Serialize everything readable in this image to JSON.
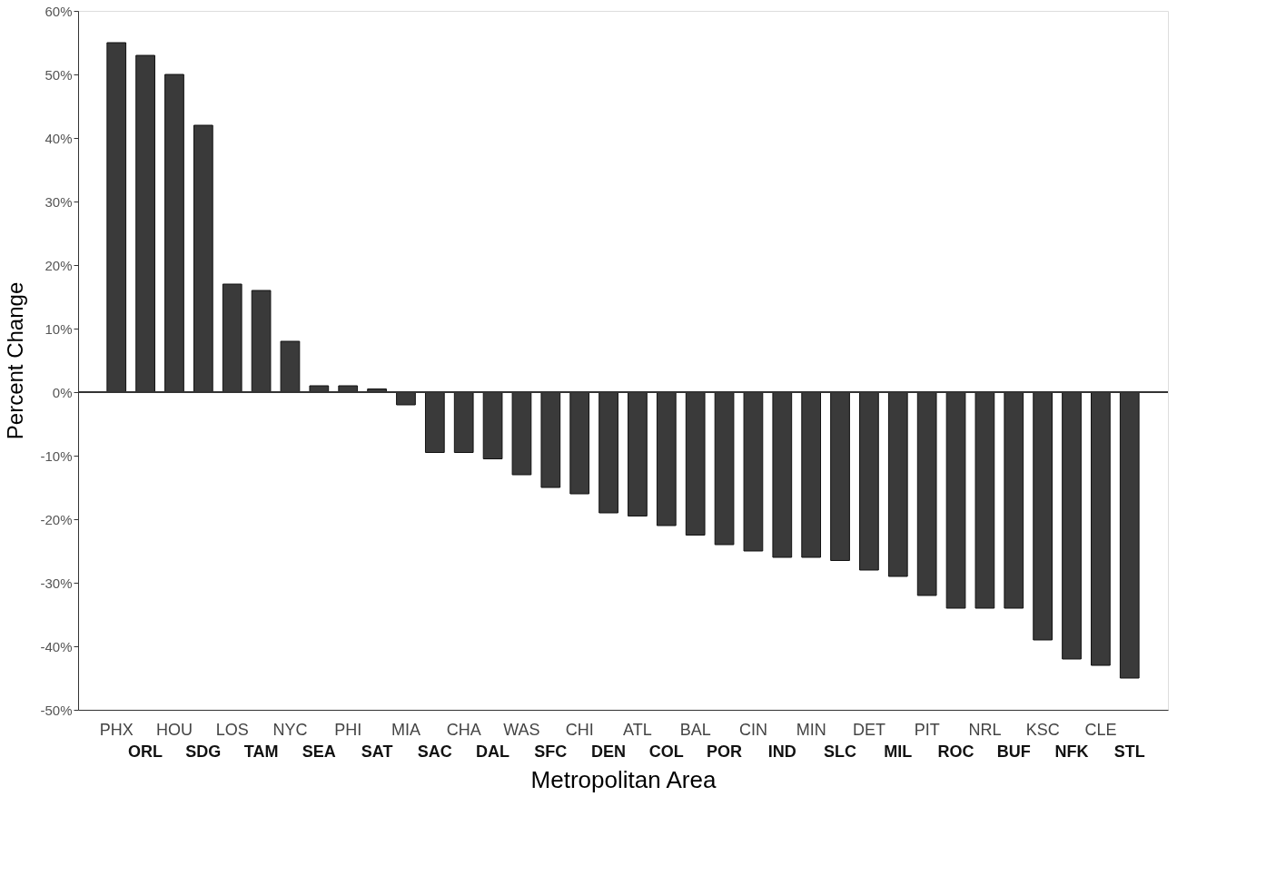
{
  "chart_data": {
    "type": "bar",
    "xlabel": "Metropolitan Area",
    "ylabel": "Percent Change",
    "categories": [
      "PHX",
      "ORL",
      "HOU",
      "SDG",
      "LOS",
      "TAM",
      "NYC",
      "SEA",
      "PHI",
      "SAT",
      "MIA",
      "SAC",
      "CHA",
      "DAL",
      "WAS",
      "SFC",
      "CHI",
      "DEN",
      "ATL",
      "COL",
      "BAL",
      "POR",
      "CIN",
      "IND",
      "MIN",
      "SLC",
      "DET",
      "MIL",
      "PIT",
      "ROC",
      "NRL",
      "BUF",
      "KSC",
      "NFK",
      "CLE",
      "STL"
    ],
    "values": [
      55,
      53,
      50,
      42,
      17,
      16,
      8,
      1,
      1,
      0.5,
      -2,
      -9.5,
      -9.5,
      -10.5,
      -13,
      -15,
      -16,
      -19,
      -19.5,
      -21,
      -22.5,
      -24,
      -25,
      -26,
      -26,
      -26.5,
      -28,
      -29,
      -32,
      -34,
      -34,
      -34,
      -39,
      -42,
      -43,
      -45
    ],
    "color": "#3a3a3a",
    "ylim": [
      -50,
      60
    ],
    "yticks": [
      {
        "value": -50,
        "label": "-50%"
      },
      {
        "value": -40,
        "label": "-40%"
      },
      {
        "value": -30,
        "label": "-30%"
      },
      {
        "value": -20,
        "label": "-20%"
      },
      {
        "value": -10,
        "label": "-10%"
      },
      {
        "value": 0,
        "label": "0%"
      },
      {
        "value": 10,
        "label": "10%"
      },
      {
        "value": 20,
        "label": "20%"
      },
      {
        "value": 30,
        "label": "30%"
      },
      {
        "value": 40,
        "label": "40%"
      },
      {
        "value": 50,
        "label": "50%"
      },
      {
        "value": 60,
        "label": "60%"
      }
    ],
    "ref_lines": [
      {
        "axis": "y",
        "value": 0
      }
    ],
    "grid": false
  }
}
